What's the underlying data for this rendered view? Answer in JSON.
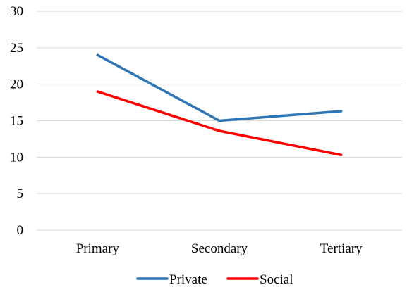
{
  "chart_data": {
    "type": "line",
    "categories": [
      "Primary",
      "Secondary",
      "Tertiary"
    ],
    "series": [
      {
        "name": "Private",
        "values": [
          24,
          15,
          16.3
        ]
      },
      {
        "name": "Social",
        "values": [
          19,
          13.6,
          10.3
        ]
      }
    ],
    "ylim": [
      0,
      30
    ],
    "yticks": [
      0,
      5,
      10,
      15,
      20,
      25,
      30
    ],
    "grid": true,
    "legend_position": "bottom",
    "colors": {
      "Private": "#2E75B6",
      "Social": "#FF0000",
      "grid": "#D9D9D9"
    }
  }
}
